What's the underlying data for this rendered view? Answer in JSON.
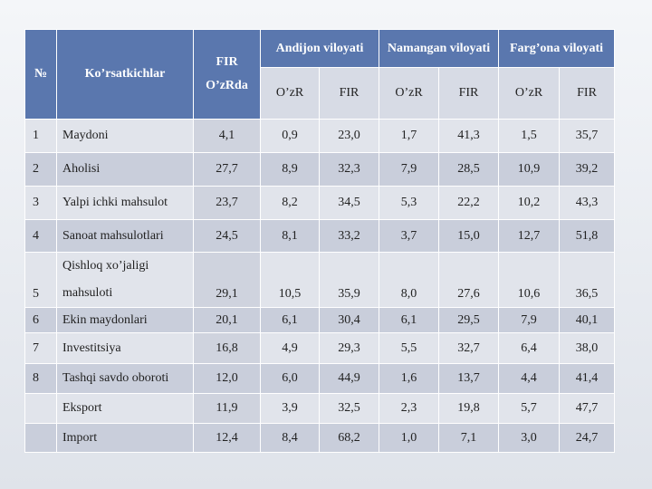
{
  "table": {
    "header": {
      "num": "№",
      "indicator": "Ko’rsatkichlar",
      "fir": [
        "FIR",
        "O’zRda"
      ],
      "regions": [
        "Andijon viloyati",
        "Namangan viloyati",
        "Farg’ona viloyati"
      ],
      "sub": [
        "O’zR",
        "FIR"
      ]
    },
    "rows": [
      {
        "num": "1",
        "label": "Maydoni",
        "values": [
          "4,1",
          "0,9",
          "23,0",
          "1,7",
          "41,3",
          "1,5",
          "35,7"
        ]
      },
      {
        "num": "2",
        "label": "Aholisi",
        "values": [
          "27,7",
          "8,9",
          "32,3",
          "7,9",
          "28,5",
          "10,9",
          "39,2"
        ]
      },
      {
        "num": "3",
        "label": "Yalpi ichki mahsulot",
        "values": [
          "23,7",
          "8,2",
          "34,5",
          "5,3",
          "22,2",
          "10,2",
          "43,3"
        ]
      },
      {
        "num": "4",
        "label": "Sanoat mahsulotlari",
        "values": [
          "24,5",
          "8,1",
          "33,2",
          "3,7",
          "15,0",
          "12,7",
          "51,8"
        ]
      },
      {
        "num": "5",
        "label": "Qishloq xo’jaligi mahsuloti",
        "values": [
          "29,1",
          "10,5",
          "35,9",
          "8,0",
          "27,6",
          "10,6",
          "36,5"
        ]
      },
      {
        "num": "6",
        "label": "Ekin maydonlari",
        "values": [
          "20,1",
          "6,1",
          "30,4",
          "6,1",
          "29,5",
          "7,9",
          "40,1"
        ]
      },
      {
        "num": "7",
        "label": "Investitsiya",
        "values": [
          "16,8",
          "4,9",
          "29,3",
          "5,5",
          "32,7",
          "6,4",
          "38,0"
        ]
      },
      {
        "num": "8",
        "label": "Tashqi savdo oboroti",
        "values": [
          "12,0",
          "6,0",
          "44,9",
          "1,6",
          "13,7",
          "4,4",
          "41,4"
        ]
      },
      {
        "label": "Eksport",
        "values": [
          "11,9",
          "3,9",
          "32,5",
          "2,3",
          "19,8",
          "5,7",
          "47,7"
        ]
      },
      {
        "label": "Import",
        "values": [
          "12,4",
          "8,4",
          "68,2",
          "1,0",
          "7,1",
          "3,0",
          "24,7"
        ]
      }
    ]
  }
}
